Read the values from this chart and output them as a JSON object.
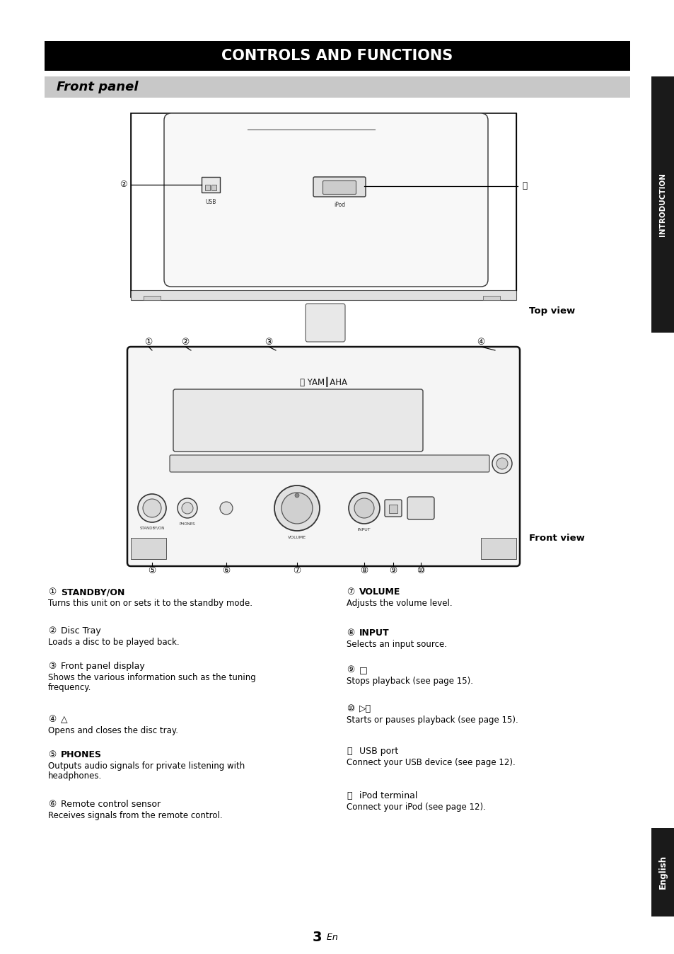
{
  "title": "CONTROLS AND FUNCTIONS",
  "subtitle": "Front panel",
  "bg_color": "#ffffff",
  "title_bg": "#000000",
  "title_fg": "#ffffff",
  "subtitle_bg": "#c8c8c8",
  "sidebar_bg": "#1a1a1a",
  "sidebar_fg": "#ffffff",
  "sidebar_top_text": "INTRODUCTION",
  "sidebar_bot_text": "English",
  "page_num": "3",
  "page_en": " En",
  "top_view_label": "Top view",
  "front_view_label": "Front view",
  "items_left": [
    {
      "num": 1,
      "title": "STANDBY/ON",
      "bold": true,
      "desc": "Turns this unit on or sets it to the standby mode."
    },
    {
      "num": 2,
      "title": "Disc Tray",
      "bold": false,
      "desc": "Loads a disc to be played back."
    },
    {
      "num": 3,
      "title": "Front panel display",
      "bold": false,
      "desc": "Shows the various information such as the tuning\nfrequency."
    },
    {
      "num": 4,
      "title": "△",
      "bold": false,
      "desc": "Opens and closes the disc tray."
    },
    {
      "num": 5,
      "title": "PHONES",
      "bold": true,
      "desc": "Outputs audio signals for private listening with\nheadphones."
    },
    {
      "num": 6,
      "title": "Remote control sensor",
      "bold": false,
      "desc": "Receives signals from the remote control."
    }
  ],
  "items_right": [
    {
      "num": 7,
      "title": "VOLUME",
      "bold": true,
      "desc": "Adjusts the volume level."
    },
    {
      "num": 8,
      "title": "INPUT",
      "bold": true,
      "desc": "Selects an input source."
    },
    {
      "num": 9,
      "title": "□",
      "bold": false,
      "desc": "Stops playback (see page 15)."
    },
    {
      "num": 10,
      "title": "▷⏸",
      "bold": false,
      "desc": "Starts or pauses playback (see page 15)."
    },
    {
      "num": 11,
      "title": "USB port",
      "bold": false,
      "desc": "Connect your USB device (see page 12)."
    },
    {
      "num": 12,
      "title": "iPod terminal",
      "bold": false,
      "desc": "Connect your iPod (see page 12)."
    }
  ]
}
